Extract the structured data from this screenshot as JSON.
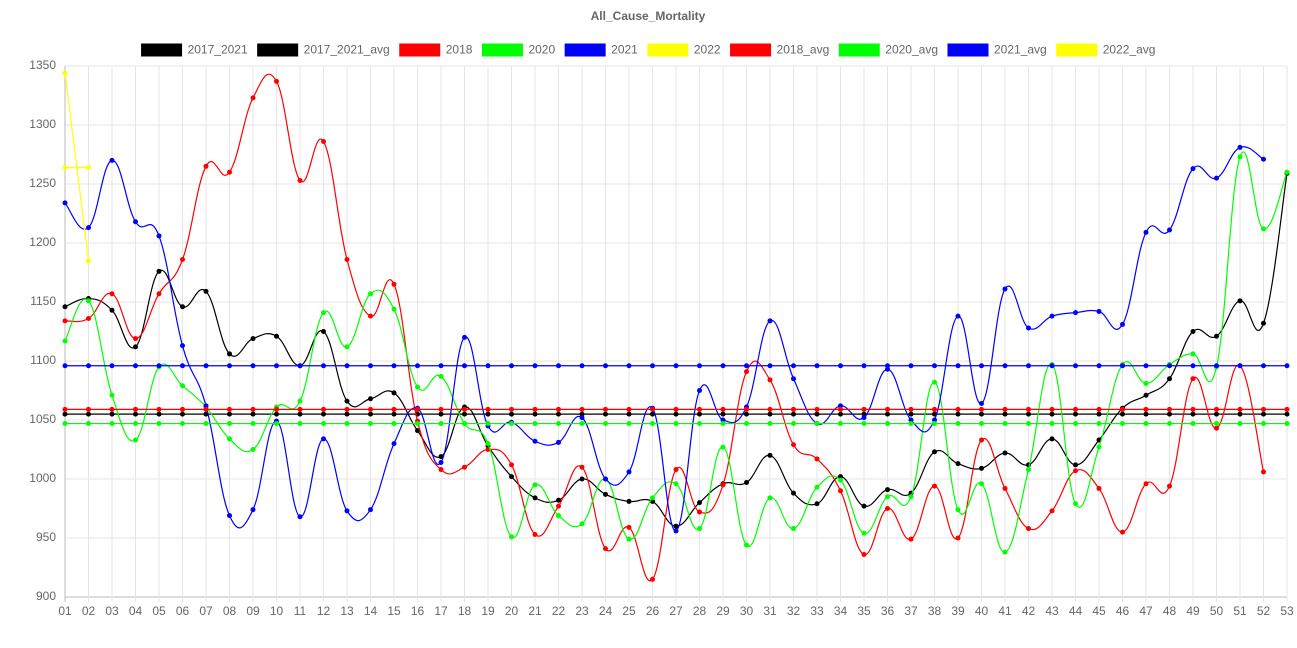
{
  "chart_data": {
    "type": "line",
    "title": "All_Cause_Mortality",
    "categories": [
      "01",
      "02",
      "03",
      "04",
      "05",
      "06",
      "07",
      "08",
      "09",
      "10",
      "11",
      "12",
      "13",
      "14",
      "15",
      "16",
      "17",
      "18",
      "19",
      "20",
      "21",
      "22",
      "23",
      "24",
      "25",
      "26",
      "27",
      "28",
      "29",
      "30",
      "31",
      "32",
      "33",
      "34",
      "35",
      "36",
      "37",
      "38",
      "39",
      "40",
      "41",
      "42",
      "43",
      "44",
      "45",
      "46",
      "47",
      "48",
      "49",
      "50",
      "51",
      "52",
      "53"
    ],
    "ylim": [
      900,
      1350
    ],
    "yticks": [
      900,
      950,
      1000,
      1050,
      1100,
      1150,
      1200,
      1250,
      1300,
      1350
    ],
    "grid": true,
    "legend": "top",
    "series": [
      {
        "name": "2017_2021",
        "color": "#000000",
        "values": [
          1146,
          1153,
          1143,
          1112,
          1176,
          1146,
          1159,
          1106,
          1119,
          1121,
          1096,
          1125,
          1066,
          1068,
          1073,
          1041,
          1019,
          1061,
          1028,
          1002,
          984,
          982,
          1000,
          987,
          981,
          981,
          960,
          980,
          996,
          997,
          1020,
          988,
          979,
          1002,
          977,
          991,
          988,
          1023,
          1013,
          1009,
          1022,
          1012,
          1034,
          1012,
          1033,
          1060,
          1071,
          1085,
          1125,
          1121,
          1151,
          1132,
          1259
        ]
      },
      {
        "name": "2017_2021_avg",
        "color": "#000000",
        "values": [
          1055,
          1055,
          1055,
          1055,
          1055,
          1055,
          1055,
          1055,
          1055,
          1055,
          1055,
          1055,
          1055,
          1055,
          1055,
          1055,
          1055,
          1055,
          1055,
          1055,
          1055,
          1055,
          1055,
          1055,
          1055,
          1055,
          1055,
          1055,
          1055,
          1055,
          1055,
          1055,
          1055,
          1055,
          1055,
          1055,
          1055,
          1055,
          1055,
          1055,
          1055,
          1055,
          1055,
          1055,
          1055,
          1055,
          1055,
          1055,
          1055,
          1055,
          1055,
          1055,
          1055
        ]
      },
      {
        "name": "2018",
        "color": "#ff0000",
        "values": [
          1134,
          1136,
          1157,
          1119,
          1157,
          1186,
          1265,
          1260,
          1323,
          1337,
          1253,
          1286,
          1186,
          1138,
          1165,
          1049,
          1008,
          1010,
          1025,
          1012,
          953,
          977,
          1010,
          941,
          959,
          915,
          1008,
          972,
          995,
          1091,
          1084,
          1029,
          1017,
          990,
          936,
          975,
          949,
          994,
          950,
          1033,
          992,
          958,
          973,
          1007,
          992,
          955,
          996,
          994,
          1085,
          1043,
          1096,
          1006,
          null
        ]
      },
      {
        "name": "2020",
        "color": "#00ff00",
        "values": [
          1117,
          1151,
          1071,
          1033,
          1095,
          1079,
          1061,
          1034,
          1025,
          1061,
          1066,
          1141,
          1112,
          1157,
          1144,
          1078,
          1087,
          1047,
          1030,
          951,
          995,
          969,
          962,
          1000,
          949,
          984,
          996,
          958,
          1027,
          944,
          984,
          958,
          993,
          999,
          954,
          985,
          985,
          1082,
          974,
          996,
          938,
          1008,
          1097,
          979,
          1027,
          1097,
          1081,
          1097,
          1106,
          1095,
          1273,
          1212,
          1260
        ]
      },
      {
        "name": "2021",
        "color": "#0000ff",
        "values": [
          1234,
          1213,
          1270,
          1218,
          1206,
          1113,
          1062,
          969,
          974,
          1049,
          968,
          1034,
          973,
          974,
          1030,
          1060,
          1014,
          1120,
          1045,
          1048,
          1032,
          1031,
          1052,
          1000,
          1006,
          1060,
          956,
          1075,
          1050,
          1061,
          1134,
          1085,
          1047,
          1062,
          1052,
          1093,
          1050,
          1050,
          1138,
          1064,
          1161,
          1128,
          1138,
          1141,
          1142,
          1131,
          1209,
          1211,
          1263,
          1255,
          1281,
          1271,
          null
        ]
      },
      {
        "name": "2022",
        "color": "#ffff00",
        "values": [
          1344,
          1185,
          null,
          null,
          null,
          null,
          null,
          null,
          null,
          null,
          null,
          null,
          null,
          null,
          null,
          null,
          null,
          null,
          null,
          null,
          null,
          null,
          null,
          null,
          null,
          null,
          null,
          null,
          null,
          null,
          null,
          null,
          null,
          null,
          null,
          null,
          null,
          null,
          null,
          null,
          null,
          null,
          null,
          null,
          null,
          null,
          null,
          null,
          null,
          null,
          null,
          null,
          null
        ]
      },
      {
        "name": "2018_avg",
        "color": "#ff0000",
        "values": [
          1059,
          1059,
          1059,
          1059,
          1059,
          1059,
          1059,
          1059,
          1059,
          1059,
          1059,
          1059,
          1059,
          1059,
          1059,
          1059,
          1059,
          1059,
          1059,
          1059,
          1059,
          1059,
          1059,
          1059,
          1059,
          1059,
          1059,
          1059,
          1059,
          1059,
          1059,
          1059,
          1059,
          1059,
          1059,
          1059,
          1059,
          1059,
          1059,
          1059,
          1059,
          1059,
          1059,
          1059,
          1059,
          1059,
          1059,
          1059,
          1059,
          1059,
          1059,
          1059,
          1059
        ]
      },
      {
        "name": "2020_avg",
        "color": "#00ff00",
        "values": [
          1047,
          1047,
          1047,
          1047,
          1047,
          1047,
          1047,
          1047,
          1047,
          1047,
          1047,
          1047,
          1047,
          1047,
          1047,
          1047,
          1047,
          1047,
          1047,
          1047,
          1047,
          1047,
          1047,
          1047,
          1047,
          1047,
          1047,
          1047,
          1047,
          1047,
          1047,
          1047,
          1047,
          1047,
          1047,
          1047,
          1047,
          1047,
          1047,
          1047,
          1047,
          1047,
          1047,
          1047,
          1047,
          1047,
          1047,
          1047,
          1047,
          1047,
          1047,
          1047,
          1047
        ]
      },
      {
        "name": "2021_avg",
        "color": "#0000ff",
        "values": [
          1096,
          1096,
          1096,
          1096,
          1096,
          1096,
          1096,
          1096,
          1096,
          1096,
          1096,
          1096,
          1096,
          1096,
          1096,
          1096,
          1096,
          1096,
          1096,
          1096,
          1096,
          1096,
          1096,
          1096,
          1096,
          1096,
          1096,
          1096,
          1096,
          1096,
          1096,
          1096,
          1096,
          1096,
          1096,
          1096,
          1096,
          1096,
          1096,
          1096,
          1096,
          1096,
          1096,
          1096,
          1096,
          1096,
          1096,
          1096,
          1096,
          1096,
          1096,
          1096,
          1096
        ]
      },
      {
        "name": "2022_avg",
        "color": "#ffff00",
        "values": [
          1264,
          1264,
          null,
          null,
          null,
          null,
          null,
          null,
          null,
          null,
          null,
          null,
          null,
          null,
          null,
          null,
          null,
          null,
          null,
          null,
          null,
          null,
          null,
          null,
          null,
          null,
          null,
          null,
          null,
          null,
          null,
          null,
          null,
          null,
          null,
          null,
          null,
          null,
          null,
          null,
          null,
          null,
          null,
          null,
          null,
          null,
          null,
          null,
          null,
          null,
          null,
          null,
          null
        ]
      }
    ]
  }
}
